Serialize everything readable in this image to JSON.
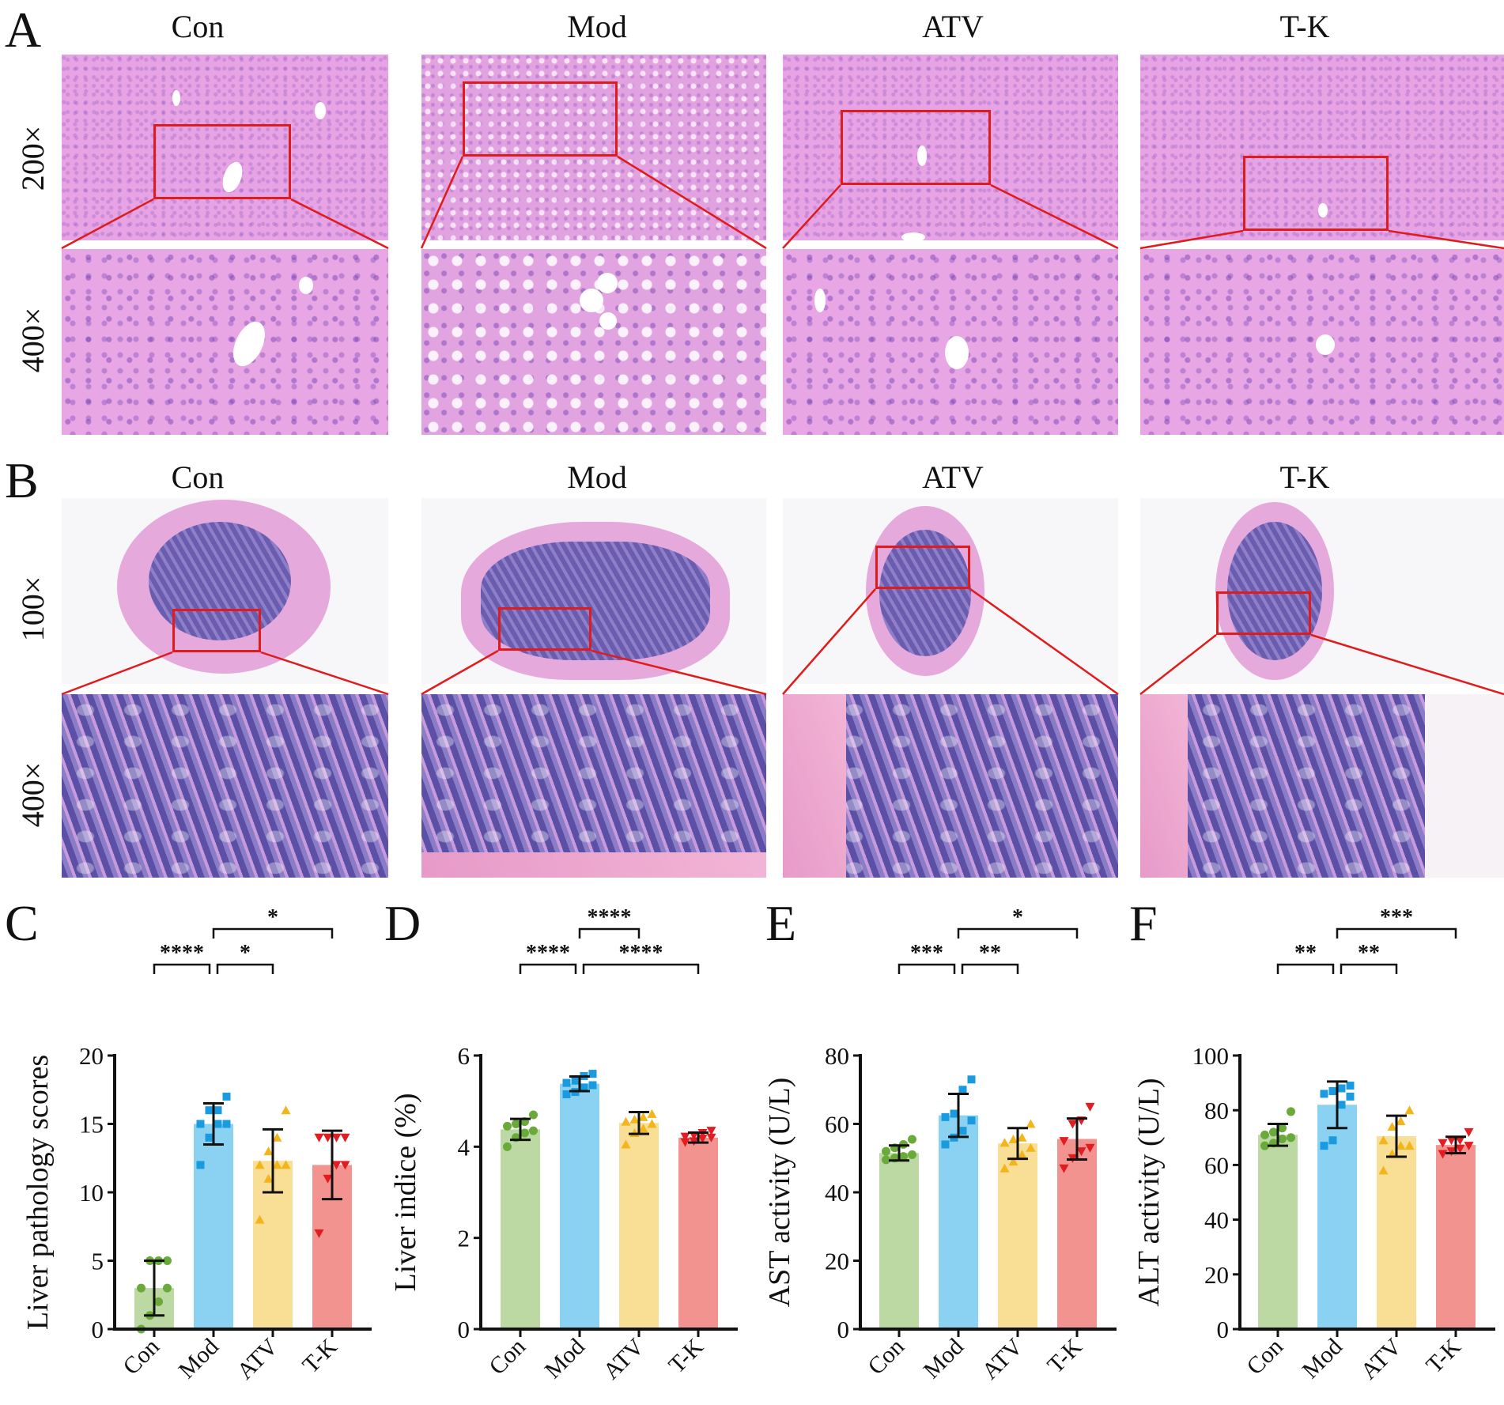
{
  "figure": {
    "panel_A": {
      "letter": "A",
      "columns": [
        "Con",
        "Mod",
        "ATV",
        "T-K"
      ],
      "rows": [
        "200×",
        "400×"
      ]
    },
    "panel_B": {
      "letter": "B",
      "columns": [
        "Con",
        "Mod",
        "ATV",
        "T-K"
      ],
      "rows": [
        "100×",
        "400×"
      ]
    },
    "colors": {
      "Con": "#bcd9a4",
      "Mod": "#8ad1f2",
      "ATV": "#f8df95",
      "T-K": "#f3938f",
      "Con_point": "#6aaa3a",
      "Mod_point": "#1a9be0",
      "ATV_point": "#f2b51c",
      "T-K_point": "#e11d22",
      "zoom_box": "#e01b1b"
    }
  },
  "chart_data": [
    {
      "panel": "C",
      "type": "bar",
      "title": "",
      "xlabel": "",
      "ylabel": "Liver pathology scores",
      "categories": [
        "Con",
        "Mod",
        "ATV",
        "T-K"
      ],
      "values": [
        3.0,
        15.0,
        12.3,
        12.0
      ],
      "error_sd": [
        2.0,
        1.5,
        2.3,
        2.5
      ],
      "points": [
        [
          0,
          1,
          2,
          3,
          3,
          5,
          5,
          5
        ],
        [
          12,
          14,
          15,
          15,
          15,
          16,
          16,
          17
        ],
        [
          8,
          11,
          12,
          12,
          12,
          13,
          14,
          16
        ],
        [
          7,
          11,
          12,
          12,
          14,
          14,
          14,
          14
        ]
      ],
      "marker": [
        "circle",
        "square",
        "triangle-up",
        "triangle-down"
      ],
      "ylim": [
        0,
        20
      ],
      "yticks": [
        0,
        5,
        10,
        15,
        20
      ],
      "significance": [
        {
          "from": "Con",
          "to": "Mod",
          "label": "****",
          "level": 1
        },
        {
          "from": "Mod",
          "to": "ATV",
          "label": "*",
          "level": 1
        },
        {
          "from": "Mod",
          "to": "T-K",
          "label": "*",
          "level": 2
        }
      ]
    },
    {
      "panel": "D",
      "type": "bar",
      "title": "",
      "xlabel": "",
      "ylabel": "Liver indice (%)",
      "categories": [
        "Con",
        "Mod",
        "ATV",
        "T-K"
      ],
      "values": [
        4.38,
        5.38,
        4.52,
        4.2
      ],
      "error_sd": [
        0.23,
        0.16,
        0.24,
        0.11
      ],
      "points": [
        [
          4.0,
          4.2,
          4.3,
          4.35,
          4.45,
          4.5,
          4.55,
          4.7
        ],
        [
          5.15,
          5.2,
          5.3,
          5.35,
          5.4,
          5.45,
          5.55,
          5.6
        ],
        [
          4.05,
          4.3,
          4.4,
          4.5,
          4.55,
          4.6,
          4.65,
          4.72
        ],
        [
          4.1,
          4.12,
          4.18,
          4.2,
          4.22,
          4.25,
          4.3,
          4.35
        ]
      ],
      "marker": [
        "circle",
        "square",
        "triangle-up",
        "triangle-down"
      ],
      "ylim": [
        0,
        6
      ],
      "yticks": [
        0,
        2,
        4,
        6
      ],
      "significance": [
        {
          "from": "Con",
          "to": "Mod",
          "label": "****",
          "level": 1
        },
        {
          "from": "Mod",
          "to": "ATV",
          "label": "****",
          "level": 2
        },
        {
          "from": "Mod",
          "to": "T-K",
          "label": "****",
          "level": 1
        }
      ]
    },
    {
      "panel": "E",
      "type": "bar",
      "title": "",
      "xlabel": "",
      "ylabel": "AST activity (U/L)",
      "categories": [
        "Con",
        "Mod",
        "ATV",
        "T-K"
      ],
      "values": [
        51.5,
        62.5,
        54.3,
        55.6
      ],
      "error_sd": [
        2.2,
        6.3,
        4.5,
        6.0
      ],
      "points": [
        [
          49.5,
          50,
          50.5,
          51,
          52,
          53,
          54,
          55.5
        ],
        [
          54,
          56,
          58,
          61,
          62,
          63,
          70,
          73
        ],
        [
          47,
          49,
          51,
          53,
          54.5,
          55.5,
          56,
          60
        ],
        [
          47,
          50,
          52,
          53,
          55,
          60,
          61,
          65
        ]
      ],
      "marker": [
        "circle",
        "square",
        "triangle-up",
        "triangle-down"
      ],
      "ylim": [
        0,
        80
      ],
      "yticks": [
        0,
        20,
        40,
        60,
        80
      ],
      "significance": [
        {
          "from": "Con",
          "to": "Mod",
          "label": "***",
          "level": 1
        },
        {
          "from": "Mod",
          "to": "ATV",
          "label": "**",
          "level": 1
        },
        {
          "from": "Mod",
          "to": "T-K",
          "label": "*",
          "level": 2
        }
      ]
    },
    {
      "panel": "F",
      "type": "bar",
      "title": "",
      "xlabel": "",
      "ylabel": "ALT activity (U/L)",
      "categories": [
        "Con",
        "Mod",
        "ATV",
        "T-K"
      ],
      "values": [
        71.0,
        82.0,
        70.5,
        67.3
      ],
      "error_sd": [
        4.0,
        8.5,
        7.5,
        3.0
      ],
      "points": [
        [
          67,
          68,
          69.5,
          70,
          71,
          72,
          73.5,
          79.5
        ],
        [
          67,
          69,
          82,
          85,
          86,
          87,
          88,
          89
        ],
        [
          58,
          64,
          67,
          67,
          69,
          74,
          76,
          80
        ],
        [
          64,
          65,
          66,
          67,
          68,
          69,
          69,
          72
        ]
      ],
      "marker": [
        "circle",
        "square",
        "triangle-up",
        "triangle-down"
      ],
      "ylim": [
        0,
        100
      ],
      "yticks": [
        0,
        20,
        40,
        60,
        80,
        100
      ],
      "significance": [
        {
          "from": "Con",
          "to": "Mod",
          "label": "**",
          "level": 1
        },
        {
          "from": "Mod",
          "to": "ATV",
          "label": "**",
          "level": 1
        },
        {
          "from": "Mod",
          "to": "T-K",
          "label": "***",
          "level": 2
        }
      ]
    }
  ]
}
